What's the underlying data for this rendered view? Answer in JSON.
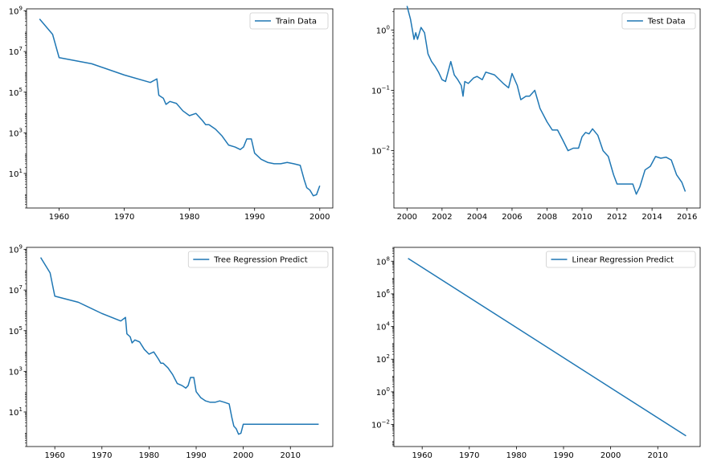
{
  "line_color": "#1f77b4",
  "chart_data": [
    {
      "type": "line",
      "yscale": "log",
      "xlim": [
        1955,
        2002
      ],
      "ylim_exp": [
        -0.7,
        9.1
      ],
      "x_ticks": [
        1960,
        1970,
        1980,
        1990,
        2000
      ],
      "x_tick_labels": [
        "1960",
        "1970",
        "1980",
        "1990",
        "2000"
      ],
      "y_tick_exponents": [
        1,
        3,
        5,
        7,
        9
      ],
      "legend": [
        "Train Data"
      ],
      "legend_loc": "upper right",
      "series": [
        {
          "name": "Train Data",
          "x": [
            1957,
            1959,
            1960,
            1965,
            1970,
            1974,
            1975,
            1975.3,
            1976,
            1976.4,
            1977,
            1978,
            1979,
            1980,
            1981,
            1982,
            1982.5,
            1983,
            1984,
            1985,
            1986,
            1987,
            1987.8,
            1988.3,
            1988.8,
            1989.5,
            1990,
            1991,
            1992,
            1993,
            1994,
            1995,
            1996,
            1997,
            1997.6,
            1998,
            1998.5,
            1999,
            1999.5,
            2000
          ],
          "y": [
            400000000,
            70000000,
            5000000,
            2500000,
            700000,
            300000,
            450000,
            70000,
            50000,
            25000,
            35000,
            28000,
            12000,
            7000,
            9000,
            4000,
            2500,
            2500,
            1500,
            700,
            250,
            200,
            150,
            200,
            500,
            500,
            100,
            50,
            35,
            30,
            30,
            35,
            30,
            25,
            5,
            2,
            1.5,
            0.8,
            0.9,
            2.5
          ]
        }
      ]
    },
    {
      "type": "line",
      "yscale": "log",
      "xlim": [
        1999.25,
        2016.75
      ],
      "ylim_exp": [
        -2.95,
        0.35
      ],
      "x_ticks": [
        2000,
        2002,
        2004,
        2006,
        2008,
        2010,
        2012,
        2014,
        2016
      ],
      "x_tick_labels": [
        "2000",
        "2002",
        "2004",
        "2006",
        "2008",
        "2010",
        "2012",
        "2014",
        "2016"
      ],
      "y_tick_exponents": [
        -2,
        -1,
        0
      ],
      "legend": [
        "Test Data"
      ],
      "legend_loc": "upper right",
      "series": [
        {
          "name": "Test Data",
          "x": [
            2000,
            2000.2,
            2000.4,
            2000.5,
            2000.6,
            2000.8,
            2001,
            2001.2,
            2001.4,
            2001.6,
            2001.8,
            2002,
            2002.2,
            2002.5,
            2002.7,
            2002.9,
            2003.1,
            2003.2,
            2003.3,
            2003.5,
            2003.8,
            2004,
            2004.3,
            2004.5,
            2005,
            2005.5,
            2005.8,
            2006,
            2006.3,
            2006.5,
            2006.8,
            2007,
            2007.3,
            2007.6,
            2008,
            2008.3,
            2008.6,
            2008.9,
            2009.2,
            2009.5,
            2009.8,
            2010,
            2010.2,
            2010.4,
            2010.6,
            2010.9,
            2011.2,
            2011.5,
            2011.8,
            2012,
            2012.3,
            2012.6,
            2012.9,
            2013.1,
            2013.3,
            2013.6,
            2013.9,
            2014.2,
            2014.5,
            2014.8,
            2015.1,
            2015.4,
            2015.7,
            2015.9
          ],
          "y": [
            2.5,
            1.5,
            0.7,
            0.9,
            0.7,
            1.1,
            0.9,
            0.4,
            0.3,
            0.25,
            0.2,
            0.15,
            0.14,
            0.3,
            0.18,
            0.15,
            0.12,
            0.08,
            0.14,
            0.13,
            0.16,
            0.17,
            0.15,
            0.2,
            0.18,
            0.13,
            0.11,
            0.19,
            0.12,
            0.07,
            0.08,
            0.08,
            0.1,
            0.05,
            0.03,
            0.022,
            0.022,
            0.015,
            0.01,
            0.011,
            0.011,
            0.017,
            0.02,
            0.019,
            0.023,
            0.018,
            0.01,
            0.008,
            0.004,
            0.0028,
            0.0028,
            0.0028,
            0.0028,
            0.0019,
            0.0025,
            0.0048,
            0.0055,
            0.008,
            0.0075,
            0.0078,
            0.007,
            0.004,
            0.003,
            0.0021
          ]
        }
      ]
    },
    {
      "type": "line",
      "yscale": "log",
      "xlim": [
        1954,
        2019
      ],
      "ylim_exp": [
        -0.7,
        9.1
      ],
      "x_ticks": [
        1960,
        1970,
        1980,
        1990,
        2000,
        2010
      ],
      "x_tick_labels": [
        "1960",
        "1970",
        "1980",
        "1990",
        "2000",
        "2010"
      ],
      "y_tick_exponents": [
        1,
        3,
        5,
        7,
        9
      ],
      "legend": [
        "Tree Regression Predict"
      ],
      "legend_loc": "upper right",
      "series": [
        {
          "name": "Tree Regression Predict",
          "x": [
            1957,
            1959,
            1960,
            1965,
            1970,
            1974,
            1975,
            1975.3,
            1976,
            1976.4,
            1977,
            1978,
            1979,
            1980,
            1981,
            1982,
            1982.5,
            1983,
            1984,
            1985,
            1986,
            1987,
            1987.8,
            1988.3,
            1988.8,
            1989.5,
            1990,
            1991,
            1992,
            1993,
            1994,
            1995,
            1996,
            1997,
            1997.6,
            1998,
            1998.5,
            1999,
            1999.5,
            2000,
            2016
          ],
          "y": [
            400000000,
            70000000,
            5000000,
            2500000,
            700000,
            300000,
            450000,
            70000,
            50000,
            25000,
            35000,
            28000,
            12000,
            7000,
            9000,
            4000,
            2500,
            2500,
            1500,
            700,
            250,
            200,
            150,
            200,
            500,
            500,
            100,
            50,
            35,
            30,
            30,
            35,
            30,
            25,
            5,
            2,
            1.5,
            0.8,
            0.9,
            2.5,
            2.5
          ]
        }
      ]
    },
    {
      "type": "line",
      "yscale": "log",
      "xlim": [
        1954,
        2019
      ],
      "ylim_exp": [
        -3.35,
        8.85
      ],
      "x_ticks": [
        1960,
        1970,
        1980,
        1990,
        2000,
        2010
      ],
      "x_tick_labels": [
        "1960",
        "1970",
        "1980",
        "1990",
        "2000",
        "2010"
      ],
      "y_tick_exponents": [
        -2,
        0,
        2,
        4,
        6,
        8
      ],
      "legend": [
        "Linear Regression Predict"
      ],
      "legend_loc": "upper right",
      "series": [
        {
          "name": "Linear Regression Predict",
          "x": [
            1957,
            2016
          ],
          "y": [
            150000000,
            0.002
          ]
        }
      ]
    }
  ]
}
